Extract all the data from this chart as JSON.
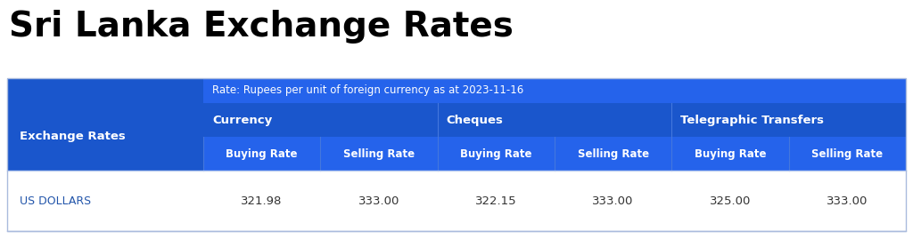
{
  "title": "Sri Lanka Exchange Rates",
  "title_fontsize": 28,
  "title_color": "#000000",
  "title_fontweight": "bold",
  "subtitle": "Rate: Rupees per unit of foreign currency as at 2023-11-16",
  "subtitle_fontsize": 8.5,
  "header_bg_dark": "#1a56cc",
  "header_bg_medium": "#2563eb",
  "header_bg_lighter": "#3070e0",
  "row_bg": "#ffffff",
  "header_text_color": "#ffffff",
  "row_label_color": "#2255aa",
  "row_value_color": "#333333",
  "col0_label": "Exchange Rates",
  "group_headers": [
    "Currency",
    "Cheques",
    "Telegraphic Transfers"
  ],
  "sub_headers": [
    "Buying Rate",
    "Selling Rate",
    "Buying Rate",
    "Selling Rate",
    "Buying Rate",
    "Selling Rate"
  ],
  "row_label": "US DOLLARS",
  "row_values": [
    "321.98",
    "333.00",
    "322.15",
    "333.00",
    "325.00",
    "333.00"
  ],
  "fig_width": 10.24,
  "fig_height": 2.69,
  "dpi": 100
}
